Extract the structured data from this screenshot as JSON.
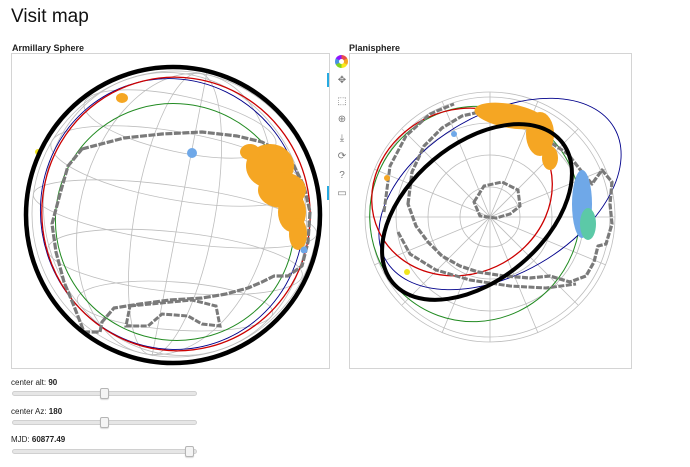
{
  "page": {
    "title": "Visit map"
  },
  "panels": {
    "armillary": {
      "title": "Armillary Sphere"
    },
    "planisphere": {
      "title": "Planisphere"
    }
  },
  "toolbar": {
    "tools": [
      {
        "name": "bokeh-logo-icon"
      },
      {
        "name": "pan-tool-icon",
        "glyph": "✥",
        "active": true
      },
      {
        "name": "box-zoom-tool-icon",
        "glyph": "⬚"
      },
      {
        "name": "wheel-zoom-tool-icon",
        "glyph": "⊕"
      },
      {
        "name": "save-tool-icon",
        "glyph": "⤓"
      },
      {
        "name": "reset-tool-icon",
        "glyph": "⟳"
      },
      {
        "name": "help-tool-icon",
        "glyph": "?"
      },
      {
        "name": "hover-tool-icon",
        "glyph": "▭",
        "active": true
      }
    ]
  },
  "controls": {
    "center_alt": {
      "label": "center alt: ",
      "value": "90",
      "fraction": 0.5
    },
    "center_az": {
      "label": "center Az: ",
      "value": "180",
      "fraction": 0.5
    },
    "mjd": {
      "label": "MJD: ",
      "value": "60877.49",
      "fraction": 0.99
    }
  },
  "colors": {
    "horizon": "#000000",
    "ecliptic": "#cc0000",
    "galactic": "#228b22",
    "meridian": "#00008b",
    "footprint": "#777777",
    "grid": "#bdbdbd",
    "visits": "#f5a623",
    "visits_blue": "#6fa8e8",
    "visits_teal": "#5cc9a7",
    "moon": "#f1e51c",
    "accent": "#26aae1"
  }
}
